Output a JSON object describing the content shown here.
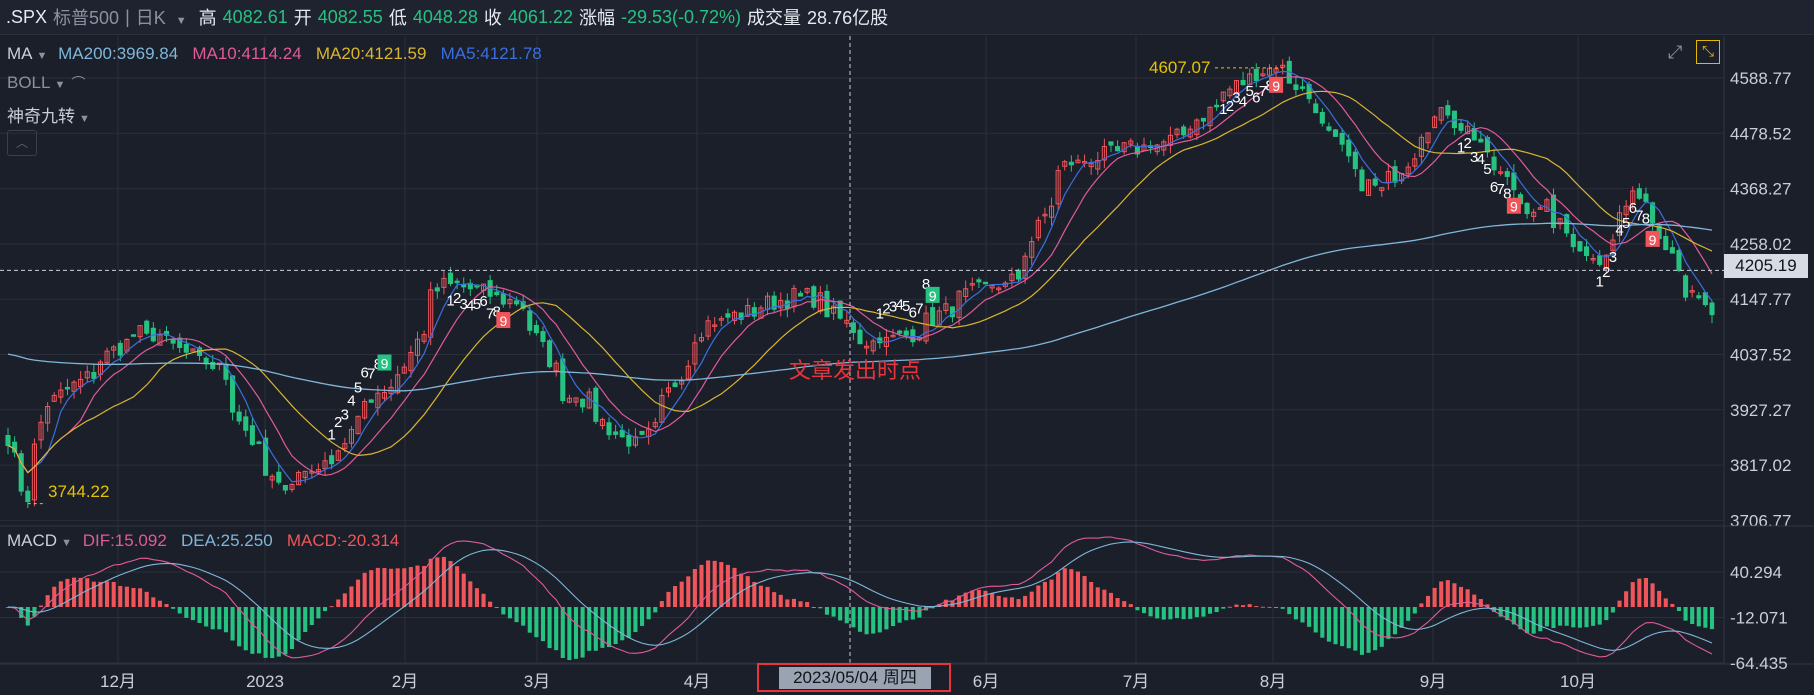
{
  "header": {
    "symbol": ".SPX",
    "name": "标普500",
    "period": "日K",
    "high_label": "高",
    "high": "4082.61",
    "open_label": "开",
    "open": "4082.55",
    "low_label": "低",
    "low": "4048.28",
    "close_label": "收",
    "close": "4061.22",
    "change_label": "涨幅",
    "change": "-29.53(-0.72%)",
    "volume_label": "成交量",
    "volume": "28.76亿股"
  },
  "legend": {
    "ma_btn": "MA",
    "ma200": "MA200:3969.84",
    "ma10": "MA10:4114.24",
    "ma20": "MA20:4121.59",
    "ma5": "MA5:4121.78",
    "boll_btn": "BOLL",
    "td_btn": "神奇九转",
    "macd_btn": "MACD",
    "dif": "DIF:15.092",
    "dea": "DEA:25.250",
    "macd": "MACD:-20.314"
  },
  "colors": {
    "up": "#f0555a",
    "down": "#26c281",
    "ma5": "#3a6fe0",
    "ma10": "#e05a9a",
    "ma20": "#d9b531",
    "ma200": "#7fb6d9",
    "dif": "#e05a9a",
    "dea": "#7fb6d9",
    "highlight": "#e8343a"
  },
  "annotation": {
    "text": "文章发出时点",
    "high_marker": "4607.07",
    "low_marker": "3744.22",
    "cursor_price": "4205.19",
    "cursor_date": "2023/05/04 周四"
  },
  "chart_data": [
    {
      "type": "candlestick",
      "title": "",
      "y_ticks": [
        "4588.77",
        "4478.52",
        "4368.27",
        "4258.02",
        "4147.77",
        "4037.52",
        "3927.27",
        "3817.02",
        "3706.77"
      ],
      "ylim": [
        3706.77,
        4588.77
      ],
      "x_ticks": [
        "12月",
        "2023",
        "2月",
        "3月",
        "4月",
        "6月",
        "7月",
        "8月",
        "9月",
        "10月"
      ],
      "price_anchors": [
        {
          "date": "2022-11-01",
          "close": 3856
        },
        {
          "date": "2022-11-04",
          "close": 3744.22
        },
        {
          "date": "2022-11-10",
          "close": 3956
        },
        {
          "date": "2022-11-30",
          "close": 4080
        },
        {
          "date": "2022-12-13",
          "close": 4019
        },
        {
          "date": "2022-12-28",
          "close": 3783
        },
        {
          "date": "2023-01-05",
          "close": 3808
        },
        {
          "date": "2023-01-20",
          "close": 3972
        },
        {
          "date": "2023-02-02",
          "close": 4179
        },
        {
          "date": "2023-02-15",
          "close": 4147
        },
        {
          "date": "2023-03-01",
          "close": 3951
        },
        {
          "date": "2023-03-13",
          "close": 3855
        },
        {
          "date": "2023-03-31",
          "close": 4109
        },
        {
          "date": "2023-04-18",
          "close": 4154
        },
        {
          "date": "2023-05-04",
          "close": 4061
        },
        {
          "date": "2023-05-31",
          "close": 4180
        },
        {
          "date": "2023-06-15",
          "close": 4425
        },
        {
          "date": "2023-06-30",
          "close": 4450
        },
        {
          "date": "2023-07-27",
          "close": 4607.07
        },
        {
          "date": "2023-08-18",
          "close": 4370
        },
        {
          "date": "2023-09-01",
          "close": 4515
        },
        {
          "date": "2023-09-21",
          "close": 4330
        },
        {
          "date": "2023-10-03",
          "close": 4229
        },
        {
          "date": "2023-10-12",
          "close": 4349
        },
        {
          "date": "2023-10-26",
          "close": 4137
        },
        {
          "date": "2023-10-27",
          "close": 4117
        }
      ],
      "td_sequential_labels": [
        "1",
        "2",
        "3",
        "4",
        "5",
        "6",
        "7",
        "8",
        "9"
      ]
    },
    {
      "type": "bar",
      "title": "",
      "y_ticks": [
        "40.294",
        "-12.071",
        "-64.435"
      ],
      "ylim": [
        -64.435,
        40.294
      ],
      "series": [
        {
          "name": "DIF",
          "last": 15.092
        },
        {
          "name": "DEA",
          "last": 25.25
        },
        {
          "name": "MACD",
          "last": -20.314
        }
      ]
    }
  ]
}
